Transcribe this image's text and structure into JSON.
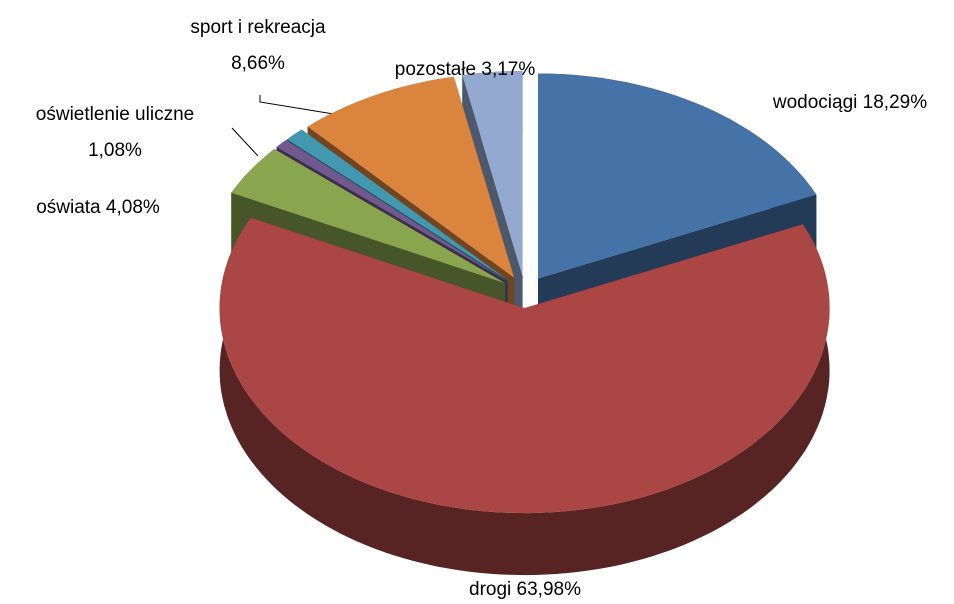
{
  "chart_data": {
    "type": "pie",
    "categories": [
      "wodociągi",
      "drogi",
      "oświata",
      null,
      "oświetlenie uliczne",
      "sport i rekreacja",
      "pozostałe"
    ],
    "values": [
      18.29,
      63.98,
      4.08,
      0.74,
      1.08,
      8.66,
      3.17
    ],
    "value_labels": [
      "18,29%",
      "63,98%",
      "4,08%",
      null,
      "1,08%",
      "8,66%",
      "3,17%"
    ],
    "colors": [
      "#4572a7",
      "#aa4643",
      "#89a54e",
      "#71588f",
      "#4198af",
      "#db843d",
      "#93a9cf"
    ]
  }
}
